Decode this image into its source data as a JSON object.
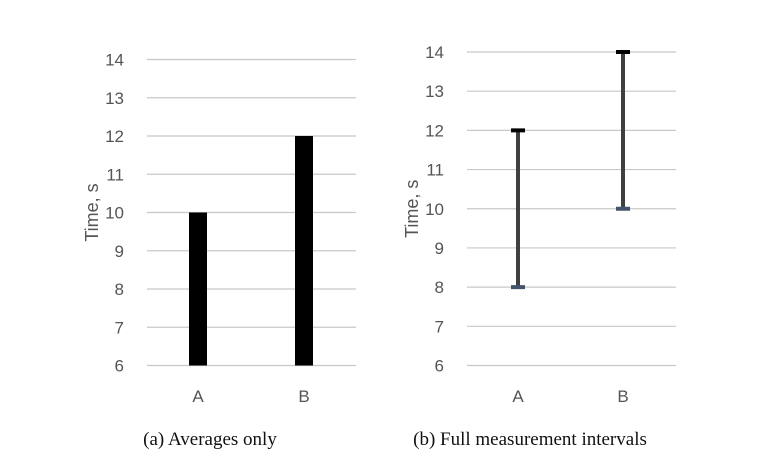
{
  "chart_data": [
    {
      "type": "bar",
      "caption": "(a) Averages only",
      "ylabel": "Time, s",
      "categories": [
        "A",
        "B"
      ],
      "values": [
        10,
        12
      ],
      "ylim": [
        6,
        14
      ],
      "yticks": [
        6,
        7,
        8,
        9,
        10,
        11,
        12,
        13,
        14
      ],
      "grid": true,
      "bar_color": "#000000"
    },
    {
      "type": "errorbar",
      "caption": "(b) Full measurement intervals",
      "ylabel": "Time, s",
      "categories": [
        "A",
        "B"
      ],
      "intervals": [
        {
          "category": "A",
          "low": 8,
          "high": 12
        },
        {
          "category": "B",
          "low": 10,
          "high": 14
        }
      ],
      "ylim": [
        6,
        14
      ],
      "yticks": [
        6,
        7,
        8,
        9,
        10,
        11,
        12,
        13,
        14
      ],
      "grid": true,
      "line_color": "#404040",
      "cap_top_color": "#000000",
      "cap_bottom_color": "#44546a"
    }
  ]
}
